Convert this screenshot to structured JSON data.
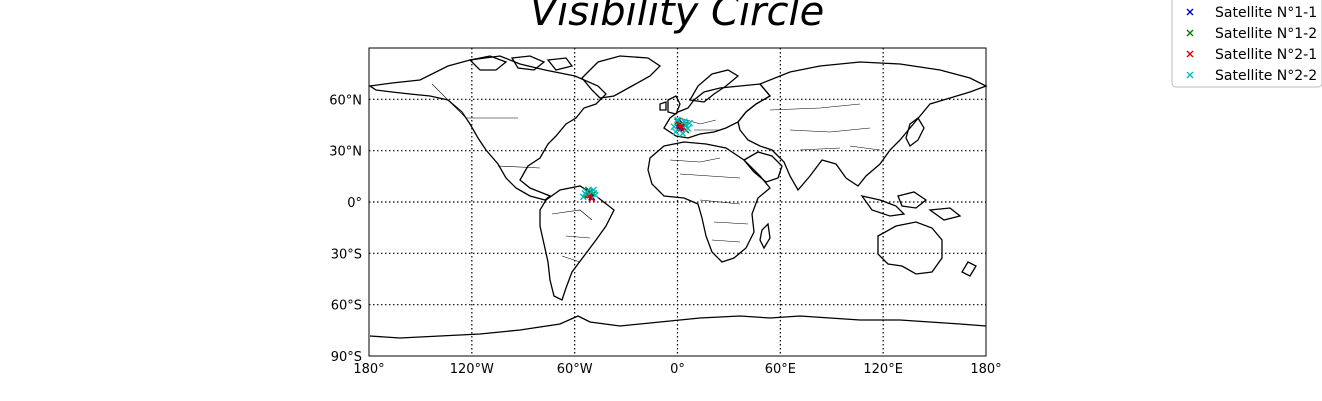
{
  "chart_data": {
    "type": "scatter",
    "title": "Visibility Circle",
    "projection": "equirectangular world map with coastlines and country borders",
    "xlim": [
      -180,
      180
    ],
    "ylim": [
      -90,
      90
    ],
    "grid": true,
    "grid_style": "dotted",
    "legend_position": "top-right",
    "xticks": [
      {
        "value": -180,
        "label": "180°"
      },
      {
        "value": -120,
        "label": "120°W"
      },
      {
        "value": -60,
        "label": "60°W"
      },
      {
        "value": 0,
        "label": "0°"
      },
      {
        "value": 60,
        "label": "60°E"
      },
      {
        "value": 120,
        "label": "120°E"
      },
      {
        "value": 180,
        "label": "180°"
      }
    ],
    "yticks": [
      {
        "value": 60,
        "label": "60°N"
      },
      {
        "value": 30,
        "label": "30°N"
      },
      {
        "value": 0,
        "label": "0°"
      },
      {
        "value": -30,
        "label": "30°S"
      },
      {
        "value": -60,
        "label": "60°S"
      },
      {
        "value": -90,
        "label": "90°S"
      }
    ],
    "series": [
      {
        "name": "Satellite N°1-1",
        "color": "#0000cc",
        "marker": "x",
        "points": [
          {
            "lon": -52,
            "lat": 5
          },
          {
            "lon": -50,
            "lat": 3
          },
          {
            "lon": -51,
            "lat": 6
          },
          {
            "lon": 2,
            "lat": 44
          },
          {
            "lon": 3,
            "lat": 46
          },
          {
            "lon": 1,
            "lat": 43
          }
        ]
      },
      {
        "name": "Satellite N°1-2",
        "color": "#008000",
        "marker": "x",
        "points": [
          {
            "lon": -53,
            "lat": 4
          },
          {
            "lon": -49,
            "lat": 5
          },
          {
            "lon": -52,
            "lat": 7
          },
          {
            "lon": 4,
            "lat": 45
          },
          {
            "lon": 0,
            "lat": 47
          },
          {
            "lon": 5,
            "lat": 42
          }
        ]
      },
      {
        "name": "Satellite N°2-1",
        "color": "#dd0000",
        "marker": "x",
        "points": [
          {
            "lon": -52,
            "lat": 4
          },
          {
            "lon": -50,
            "lat": 2
          },
          {
            "lon": -51,
            "lat": 4
          },
          {
            "lon": 1,
            "lat": 45
          },
          {
            "lon": 2,
            "lat": 43
          },
          {
            "lon": 3,
            "lat": 44
          }
        ]
      },
      {
        "name": "Satellite N°2-2",
        "color": "#00bfbf",
        "marker": "x",
        "points": [
          {
            "lon": -55,
            "lat": 3
          },
          {
            "lon": -53,
            "lat": 6
          },
          {
            "lon": -50,
            "lat": 6
          },
          {
            "lon": -48,
            "lat": 4
          },
          {
            "lon": -54,
            "lat": 5
          },
          {
            "lon": -49,
            "lat": 7
          },
          {
            "lon": -2,
            "lat": 44
          },
          {
            "lon": 0,
            "lat": 48
          },
          {
            "lon": 4,
            "lat": 47
          },
          {
            "lon": 6,
            "lat": 43
          },
          {
            "lon": 3,
            "lat": 40
          },
          {
            "lon": -1,
            "lat": 41
          },
          {
            "lon": 5,
            "lat": 45
          },
          {
            "lon": 7,
            "lat": 46
          }
        ]
      }
    ]
  }
}
